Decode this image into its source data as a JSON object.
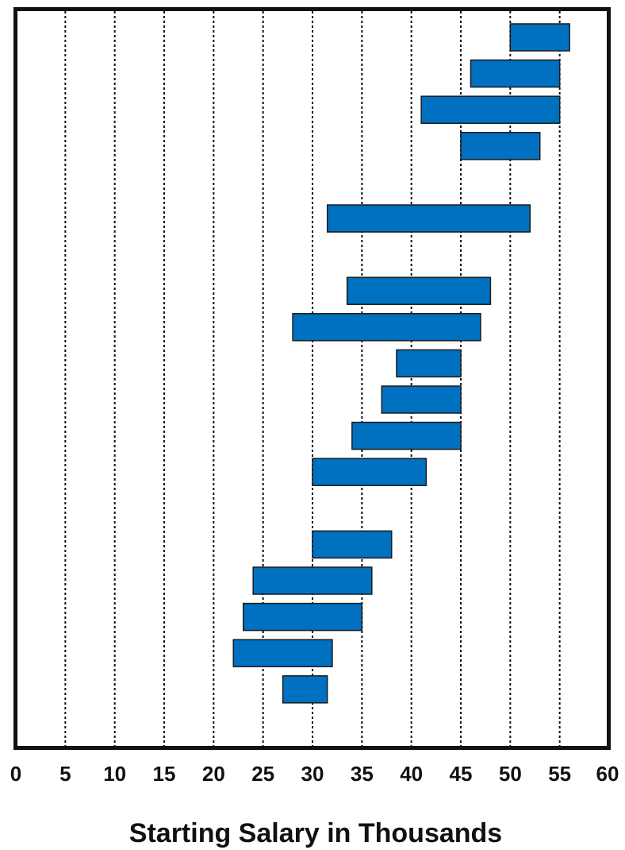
{
  "chart_data": {
    "type": "bar",
    "orientation": "horizontal-range",
    "title": "",
    "xlabel": "Starting Salary in Thousands",
    "ylabel": "",
    "xlim": [
      0,
      60
    ],
    "xticks": [
      "0",
      "5",
      "10",
      "15",
      "20",
      "25",
      "30",
      "35",
      "40",
      "45",
      "50",
      "55",
      "60"
    ],
    "grid": "vertical dotted at each 5",
    "colors": {
      "bar_fill": "#0070C0",
      "bar_stroke": "#1a1a1a",
      "frame": "#111111",
      "grid": "#111111"
    },
    "ranges": [
      {
        "row": 0,
        "start": 50,
        "end": 56
      },
      {
        "row": 1,
        "start": 46,
        "end": 55
      },
      {
        "row": 2,
        "start": 41,
        "end": 55
      },
      {
        "row": 3,
        "start": 45,
        "end": 53
      },
      {
        "row": 5,
        "start": 31.5,
        "end": 52
      },
      {
        "row": 7,
        "start": 33.5,
        "end": 48
      },
      {
        "row": 8,
        "start": 28,
        "end": 47
      },
      {
        "row": 9,
        "start": 38.5,
        "end": 45
      },
      {
        "row": 10,
        "start": 37,
        "end": 45
      },
      {
        "row": 11,
        "start": 34,
        "end": 45
      },
      {
        "row": 12,
        "start": 30,
        "end": 41.5
      },
      {
        "row": 14,
        "start": 30,
        "end": 38
      },
      {
        "row": 15,
        "start": 24,
        "end": 36
      },
      {
        "row": 16,
        "start": 23,
        "end": 35
      },
      {
        "row": 17,
        "start": 22,
        "end": 32
      },
      {
        "row": 18,
        "start": 27,
        "end": 31.5
      }
    ]
  }
}
